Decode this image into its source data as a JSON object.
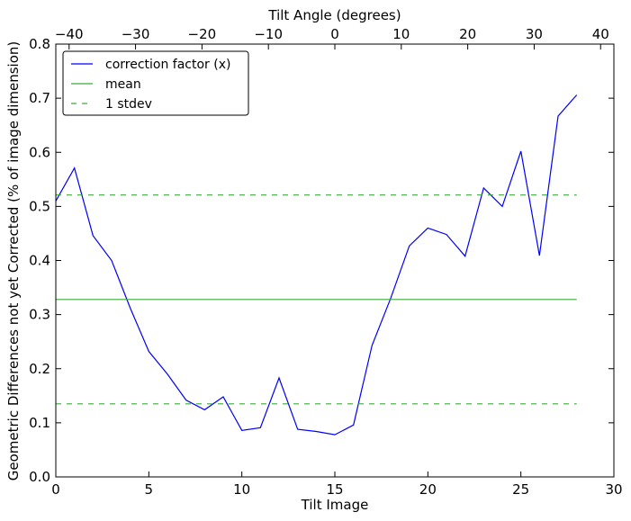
{
  "chart_data": {
    "type": "line",
    "xlabel": "Tilt Image",
    "ylabel": "Geometric Differences not yet Corrected (% of image dimension)",
    "top_xlabel": "Tilt Angle (degrees)",
    "xlim": [
      0,
      30
    ],
    "ylim": [
      0,
      0.8
    ],
    "top_xlim": [
      -42,
      42
    ],
    "x_ticks": [
      0,
      5,
      10,
      15,
      20,
      25,
      30
    ],
    "x_tick_labels": [
      "0",
      "5",
      "10",
      "15",
      "20",
      "25",
      "30"
    ],
    "y_ticks": [
      0.0,
      0.1,
      0.2,
      0.3,
      0.4,
      0.5,
      0.6,
      0.7,
      0.8
    ],
    "y_tick_labels": [
      "0.0",
      "0.1",
      "0.2",
      "0.3",
      "0.4",
      "0.5",
      "0.6",
      "0.7",
      "0.8"
    ],
    "top_x_ticks": [
      -40,
      -30,
      -20,
      -10,
      0,
      10,
      20,
      30,
      40
    ],
    "top_x_tick_labels": [
      "−40",
      "−30",
      "−20",
      "−10",
      "0",
      "10",
      "20",
      "30",
      "40"
    ],
    "grid": false,
    "legend_position": "top-left",
    "series": [
      {
        "name": "correction factor (x)",
        "style": "solid",
        "color": "#0000ff",
        "x": [
          0,
          1,
          2,
          3,
          4,
          5,
          6,
          7,
          8,
          9,
          10,
          11,
          12,
          13,
          14,
          15,
          16,
          17,
          18,
          19,
          20,
          21,
          22,
          23,
          24,
          25,
          26,
          27,
          28
        ],
        "y": [
          0.51,
          0.571,
          0.446,
          0.4,
          0.312,
          0.232,
          0.19,
          0.142,
          0.124,
          0.148,
          0.086,
          0.091,
          0.183,
          0.088,
          0.084,
          0.078,
          0.096,
          0.243,
          0.33,
          0.427,
          0.46,
          0.448,
          0.408,
          0.534,
          0.5,
          0.602,
          0.409,
          0.667,
          0.706
        ]
      },
      {
        "name": "mean",
        "style": "solid",
        "color": "#3cab3c",
        "x": [
          0,
          28
        ],
        "y": [
          0.328,
          0.328
        ]
      },
      {
        "name": "1 stdev",
        "style": "dashed",
        "color": "#3cab3c",
        "x": [
          0,
          28
        ],
        "y": [
          0.521,
          0.521
        ]
      },
      {
        "name": "",
        "style": "dashed",
        "color": "#3cab3c",
        "x": [
          0,
          28
        ],
        "y": [
          0.135,
          0.135
        ]
      }
    ]
  }
}
